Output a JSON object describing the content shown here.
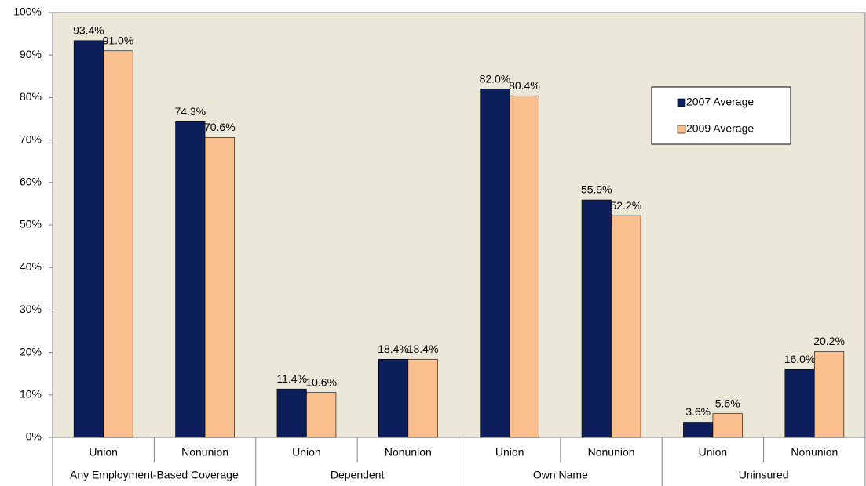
{
  "chart_data": {
    "type": "bar",
    "categories": [
      "Union",
      "Nonunion",
      "Union",
      "Nonunion",
      "Union",
      "Nonunion",
      "Union",
      "Nonunion"
    ],
    "groups": [
      "Any Employment-Based Coverage",
      "Dependent",
      "Own Name",
      "Uninsured"
    ],
    "series": [
      {
        "name": "2007 Average",
        "color": "#0c1f5b",
        "values": [
          93.4,
          74.3,
          11.4,
          18.4,
          82.0,
          55.9,
          3.6,
          16.0
        ],
        "value_labels": [
          "93.4%",
          "74.3%",
          "11.4%",
          "18.4%",
          "82.0%",
          "55.9%",
          "3.6%",
          "16.0%"
        ]
      },
      {
        "name": "2009 Average",
        "color": "#f9bf8f",
        "values": [
          91.0,
          70.6,
          10.6,
          18.4,
          80.4,
          52.2,
          5.6,
          20.2
        ],
        "value_labels": [
          "91.0%",
          "70.6%",
          "10.6%",
          "18.4%",
          "80.4%",
          "52.2%",
          "5.6%",
          "20.2%"
        ]
      }
    ],
    "ylim": [
      0,
      100
    ],
    "yticks": [
      {
        "value": 0,
        "label": "0%"
      },
      {
        "value": 10,
        "label": "10%"
      },
      {
        "value": 20,
        "label": "20%"
      },
      {
        "value": 30,
        "label": "30%"
      },
      {
        "value": 40,
        "label": "40%"
      },
      {
        "value": 50,
        "label": "50%"
      },
      {
        "value": 60,
        "label": "60%"
      },
      {
        "value": 70,
        "label": "70%"
      },
      {
        "value": 80,
        "label": "80%"
      },
      {
        "value": 90,
        "label": "90%"
      },
      {
        "value": 100,
        "label": "100%"
      }
    ],
    "plot_background": "#ebe8d9",
    "legend": "upper right"
  }
}
